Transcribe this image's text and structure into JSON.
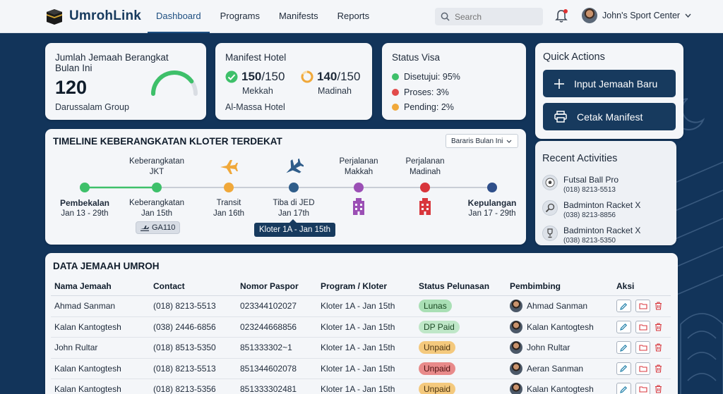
{
  "brand": {
    "name": "UmrohLink"
  },
  "nav": [
    {
      "label": "Dashboard",
      "active": true
    },
    {
      "label": "Programs"
    },
    {
      "label": "Manifests"
    },
    {
      "label": "Reports"
    }
  ],
  "search": {
    "placeholder": "Search"
  },
  "user": {
    "name": "John's Sport Center"
  },
  "card_jamaah": {
    "title": "Jumlah Jemaah Berangkat Bulan Ini",
    "value": "120",
    "group": "Darussalam Group",
    "gauge_fraction": 0.8
  },
  "card_manifest": {
    "title": "Manifest Hotel",
    "mekkah_value": "150",
    "mekkah_total": "/150",
    "mekkah_label": "Mekkah",
    "madinah_value": "140",
    "madinah_total": "/150",
    "madinah_label": "Madinah",
    "hotel": "Al-Massa Hotel"
  },
  "card_visa": {
    "title": "Status Visa",
    "items": [
      {
        "label": "Disetujui: 95%",
        "color": "#3ec06a"
      },
      {
        "label": "Proses: 3%",
        "color": "#e24b4b"
      },
      {
        "label": "Pending: 2%",
        "color": "#f0a83a"
      }
    ]
  },
  "quick_actions": {
    "title": "Quick Actions",
    "input_label": "Input Jemaah Baru",
    "print_label": "Cetak Manifest"
  },
  "recent": {
    "title": "Recent Activities",
    "items": [
      {
        "name": "Futsal Ball Pro",
        "phone": "(018) 8213-5513"
      },
      {
        "name": "Badminton Racket X",
        "phone": "(038) 8213-8856"
      },
      {
        "name": "Badminton Racket X",
        "phone": "(038) 8213-5350"
      }
    ]
  },
  "timeline": {
    "title": "TIMELINE KEBERANGKATAN KLOTER TERDEKAT",
    "filter": "Bararis Bulan Ini",
    "stops": [
      {
        "name": "Pembekalan",
        "date": "Jan 13 - 29th",
        "color": "#3ec06a"
      },
      {
        "name": "Keberangkatan",
        "top": "Keberangkatan JKT",
        "date": "Jan 15th",
        "color": "#3ec06a"
      },
      {
        "name": "Transit",
        "date": "Jan 16th",
        "color": "#f0a83a"
      },
      {
        "name": "Tiba di JED",
        "date": "Jan 17th",
        "color": "#2f5d8a"
      },
      {
        "name": "Perjalanan Makkah",
        "color": "#9b4fb5"
      },
      {
        "name": "Perjalanan Madinah",
        "color": "#d8363c"
      },
      {
        "name": "Kepulangan",
        "date": "Jan 17 - 29th",
        "color": "#2f4f8a"
      }
    ],
    "flight": "GA110",
    "tooltip": "Kloter 1A - Jan 15th"
  },
  "table": {
    "title": "DATA JEMAAH UMROH",
    "headers": [
      "Nama Jemaah",
      "Contact",
      "Nomor Paspor",
      "Program / Kloter",
      "Status Pelunasan",
      "Pembimbing",
      "Aksi"
    ],
    "rows": [
      {
        "nama": "Ahmad Sanman",
        "contact": "(018) 8213-5513",
        "paspor": "023344102027",
        "kloter": "Kloter 1A - Jan 15th",
        "status": "Lunas",
        "status_type": "lunas",
        "pembimbing": "Ahmad Sanman"
      },
      {
        "nama": "Kalan Kantogtesh",
        "contact": "(038) 2446-6856",
        "paspor": "023244668856",
        "kloter": "Kloter 1A - Jan 15th",
        "status": "DP Paid",
        "status_type": "dp",
        "pembimbing": "Kalan Kantogtesh"
      },
      {
        "nama": "John Rultar",
        "contact": "(018) 8513-5350",
        "paspor": "851333302~1",
        "kloter": "Kloter 1A - Jan 15th",
        "status": "Unpaid",
        "status_type": "unpaid",
        "pembimbing": "John Rultar"
      },
      {
        "nama": "Kalan Kantogtesh",
        "contact": "(018) 8213-5513",
        "paspor": "851344602078",
        "kloter": "Kloter 1A - Jan 15th",
        "status": "Unpaid",
        "status_type": "unpaid-red",
        "pembimbing": "Aeran Sanman"
      },
      {
        "nama": "Kalan Kantogtesh",
        "contact": "(018) 8213-5356",
        "paspor": "851333302481",
        "kloter": "Kloter 1A - Jan 15th",
        "status": "Unpaid",
        "status_type": "unpaid",
        "pembimbing": "Kalan Kantogtesh"
      }
    ]
  }
}
